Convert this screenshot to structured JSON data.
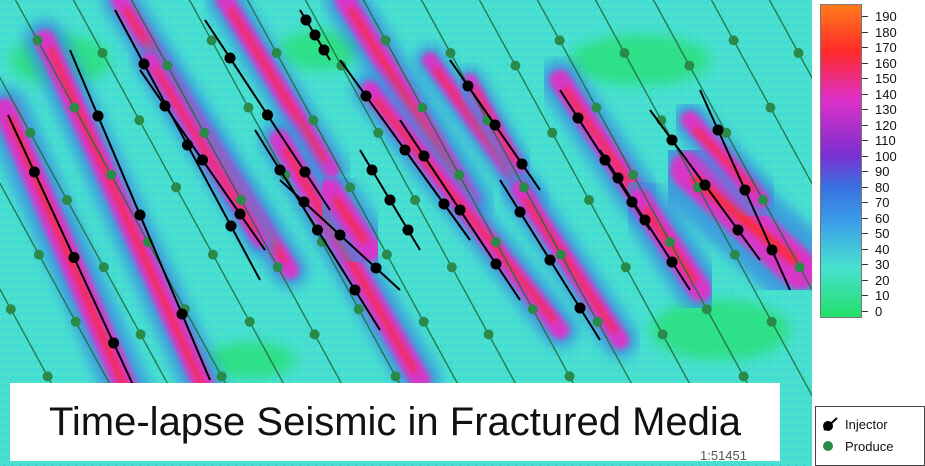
{
  "caption": "Time-lapse Seismic in Fractured Media",
  "scale_text": "1:51451",
  "colorbar": {
    "ticks": [
      "190",
      "180",
      "170",
      "160",
      "150",
      "140",
      "130",
      "120",
      "110",
      "100",
      "90",
      "80",
      "70",
      "60",
      "50",
      "40",
      "30",
      "20",
      "10",
      "0"
    ],
    "colors": {
      "low": "#22e06a",
      "cyan": "#48e0d0",
      "blue": "#3a8fe0",
      "purple": "#5a2fd0",
      "magenta": "#e030c8",
      "red": "#ff2a2a",
      "orange": "#ff7a1a"
    }
  },
  "legend": {
    "injector_label": "Injector",
    "producer_label": "Produce"
  },
  "map": {
    "background": "#48e0d0",
    "injector_color": "#000000",
    "producer_color": "#2a8a4a",
    "injector_icon": "black-dot-with-line",
    "producer_icon": "green-dot"
  }
}
